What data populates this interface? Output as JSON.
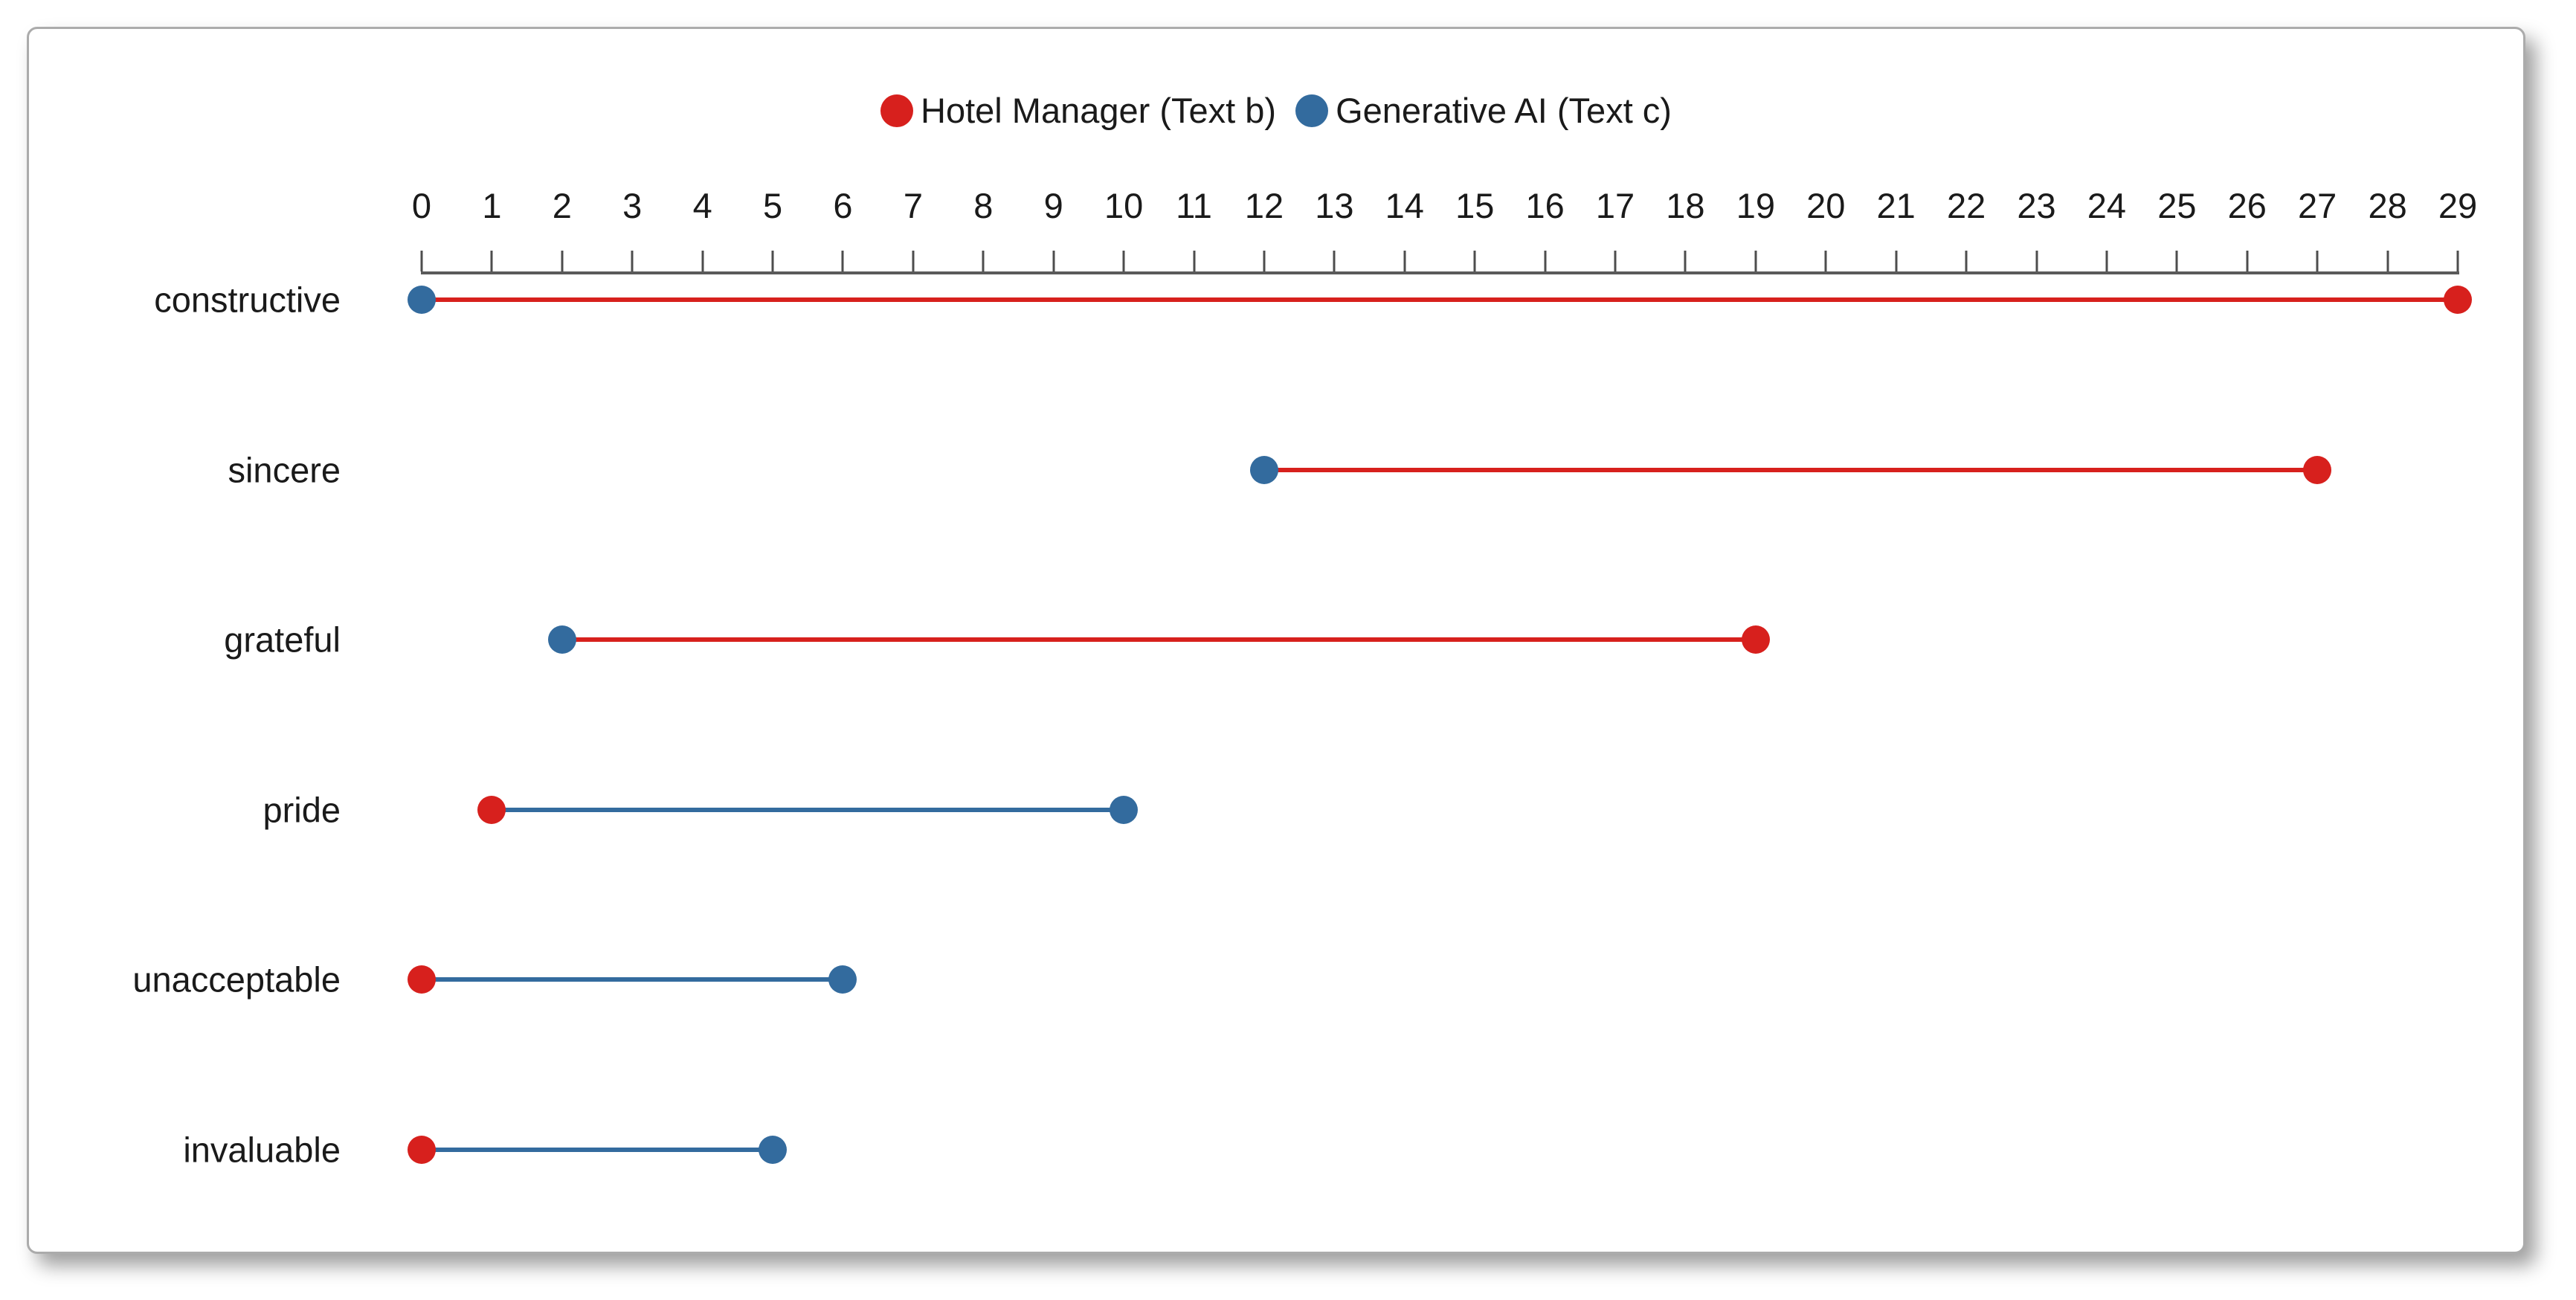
{
  "figure": {
    "background": "#ffffff",
    "panel_border_color": "#ababab"
  },
  "legend": {
    "position": "top-center",
    "items": [
      {
        "label": "Hotel Manager (Text b)",
        "color": "#d7201d",
        "marker": "circle"
      },
      {
        "label": "Generative AI (Text c)",
        "color": "#336b9e",
        "marker": "circle"
      }
    ]
  },
  "chart_data": {
    "type": "scatter",
    "variant": "dumbbell",
    "orientation": "horizontal",
    "title": "",
    "xlabel": "",
    "ylabel": "",
    "categories": [
      "constructive",
      "sincere",
      "grateful",
      "pride",
      "unacceptable",
      "invaluable"
    ],
    "series": [
      {
        "name": "Hotel Manager (Text b)",
        "color": "#d7201d",
        "values": [
          29,
          27,
          19,
          1,
          0,
          0
        ]
      },
      {
        "name": "Generative AI (Text c)",
        "color": "#336b9e",
        "values": [
          0,
          12,
          2,
          10,
          6,
          5
        ]
      }
    ],
    "connector_rule": "connector line takes the color of the series with the larger value",
    "xlim": [
      0,
      29
    ],
    "x_ticks": [
      0,
      1,
      2,
      3,
      4,
      5,
      6,
      7,
      8,
      9,
      10,
      11,
      12,
      13,
      14,
      15,
      16,
      17,
      18,
      19,
      20,
      21,
      22,
      23,
      24,
      25,
      26,
      27,
      28,
      29
    ],
    "axis_position": "top",
    "grid": false,
    "legend_position": "top-center"
  }
}
